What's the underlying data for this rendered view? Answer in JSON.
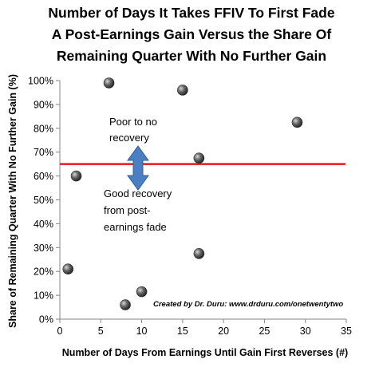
{
  "chart_data": {
    "type": "scatter",
    "title_lines": [
      "Number of Days It Takes FFIV To First Fade",
      "A Post-Earnings  Gain Versus the Share Of",
      "Remaining Quarter With No Further Gain"
    ],
    "xlabel": "Number of Days From Earnings Until Gain First Reverses (#)",
    "ylabel": "Share of Remaining Quarter With No Further Gain (%)",
    "xlim": [
      0,
      35
    ],
    "ylim": [
      0,
      100
    ],
    "x_ticks": [
      "0",
      "5",
      "10",
      "15",
      "20",
      "25",
      "30",
      "35"
    ],
    "y_ticks": [
      "0%",
      "10%",
      "20%",
      "30%",
      "40%",
      "50%",
      "60%",
      "70%",
      "80%",
      "90%",
      "100%"
    ],
    "points": [
      {
        "x": 1,
        "y": 21
      },
      {
        "x": 2,
        "y": 60
      },
      {
        "x": 6,
        "y": 99
      },
      {
        "x": 8,
        "y": 6
      },
      {
        "x": 10,
        "y": 11.5
      },
      {
        "x": 15,
        "y": 96
      },
      {
        "x": 17,
        "y": 67.5
      },
      {
        "x": 17,
        "y": 27.5
      },
      {
        "x": 29,
        "y": 82.5
      }
    ],
    "threshold": {
      "y": 65,
      "color": "#e8191c"
    },
    "annotations": {
      "above": [
        "Poor to no",
        "recovery"
      ],
      "below": [
        "Good recovery",
        "from post-",
        "earnings fade"
      ]
    },
    "arrow_color": "#4a7fc1",
    "marker_color": "#555555",
    "credit": "Created by Dr. Duru: www.drduru.com/onetwentytwo",
    "grid": false
  }
}
